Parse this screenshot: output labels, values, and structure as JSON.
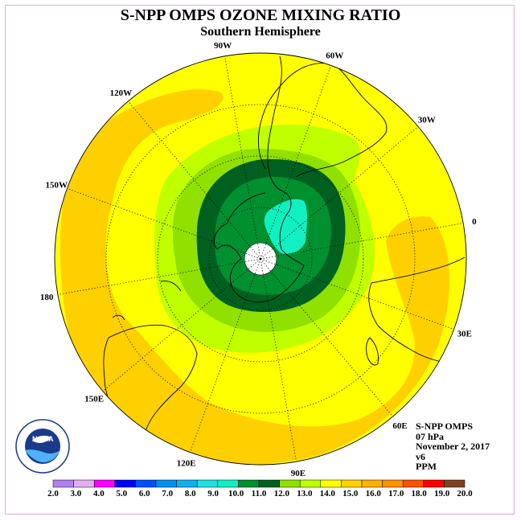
{
  "title": "S-NPP OMPS OZONE MIXING RATIO",
  "subtitle": "Southern Hemisphere",
  "info": {
    "instrument": "S-NPP OMPS",
    "level": "07 hPa",
    "date": "November 2, 2017",
    "version": "v6",
    "units": "PPM"
  },
  "logo_text": "NOAA",
  "longitude_labels": [
    "90W",
    "60W",
    "30W",
    "0",
    "30E",
    "60E",
    "90E",
    "120E",
    "150E",
    "180",
    "150W",
    "120W"
  ],
  "colorbar": {
    "labels": [
      "2.0",
      "3.0",
      "4.0",
      "5.0",
      "6.0",
      "7.0",
      "8.0",
      "9.0",
      "10.0",
      "11.0",
      "12.0",
      "13.0",
      "14.0",
      "15.0",
      "16.0",
      "17.0",
      "18.0",
      "19.0",
      "20.0"
    ],
    "colors": [
      "#b080f0",
      "#e0b0f0",
      "#ff00ff",
      "#0000ff",
      "#0050ff",
      "#0090f0",
      "#10b0f0",
      "#20e0e0",
      "#10f0c0",
      "#009030",
      "#006020",
      "#90e000",
      "#c0ff00",
      "#ffff00",
      "#ffd000",
      "#ffb000",
      "#ff9000",
      "#ff5000",
      "#ff0000",
      "#804020"
    ]
  },
  "colors": {
    "land_outline": "#000000",
    "background_field": "#ffff00",
    "graticule": "#000000"
  }
}
